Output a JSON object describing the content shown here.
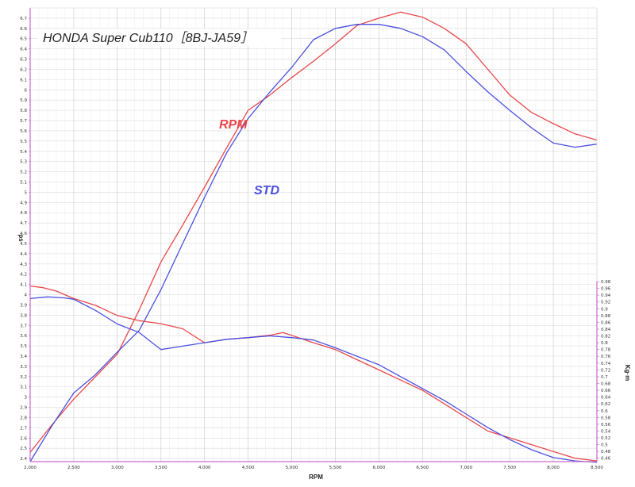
{
  "chart_data": {
    "type": "line",
    "title": "HONDA   Super Cub110［8BJ-JA59］",
    "xlabel": "RPM",
    "ylabel_left": "ps",
    "ylabel_right": "Kg·m",
    "xlim": [
      2000,
      8500
    ],
    "ylim_left": [
      2.37,
      6.8
    ],
    "ylim_right": [
      0.45,
      0.98
    ],
    "x_ticks": [
      2000,
      2500,
      3000,
      3500,
      4000,
      4500,
      5000,
      5500,
      6000,
      6500,
      7000,
      7500,
      8000,
      8500
    ],
    "x_tick_labels": [
      "2,000",
      "2,500",
      "3,000",
      "3,500",
      "4,000",
      "4,500",
      "5,000",
      "5,500",
      "6,000",
      "6,500",
      "7,000",
      "7,500",
      "8,000",
      "8,500"
    ],
    "y_left_ticks": [
      "2.4",
      "2.5",
      "2.6",
      "2.7",
      "2.8",
      "2.9",
      "3",
      "3.1",
      "3.2",
      "3.3",
      "3.4",
      "3.5",
      "3.6",
      "3.7",
      "3.8",
      "3.9",
      "4",
      "4.1",
      "4.2",
      "4.3",
      "4.4",
      "4.5",
      "4.6",
      "4.7",
      "4.8",
      "4.9",
      "5",
      "5.1",
      "5.2",
      "5.3",
      "5.4",
      "5.5",
      "5.6",
      "5.7",
      "5.8",
      "5.9",
      "6",
      "6.1",
      "6.2",
      "6.3",
      "6.4",
      "6.5",
      "6.6",
      "6.7"
    ],
    "y_right_ticks": [
      "0.46",
      "0.48",
      "0.5",
      "0.52",
      "0.54",
      "0.56",
      "0.58",
      "0.6",
      "0.62",
      "0.64",
      "0.66",
      "0.68",
      "0.7",
      "0.72",
      "0.74",
      "0.76",
      "0.78",
      "0.8",
      "0.82",
      "0.84",
      "0.86",
      "0.88",
      "0.9",
      "0.92",
      "0.94",
      "0.96",
      "0.98"
    ],
    "series": [
      {
        "name": "RPM",
        "metric": "power",
        "axis": "left",
        "color": "#e8474a",
        "x": [
          2000,
          2250,
          2500,
          2750,
          3000,
          3250,
          3500,
          3750,
          4000,
          4250,
          4500,
          4750,
          5000,
          5250,
          5500,
          5750,
          6000,
          6250,
          6500,
          6750,
          7000,
          7250,
          7500,
          7750,
          8000,
          8250,
          8500
        ],
        "values": [
          2.46,
          2.73,
          2.98,
          3.2,
          3.42,
          3.85,
          4.32,
          4.68,
          5.05,
          5.43,
          5.8,
          5.95,
          6.12,
          6.28,
          6.45,
          6.63,
          6.7,
          6.76,
          6.71,
          6.6,
          6.45,
          6.2,
          5.95,
          5.78,
          5.67,
          5.57,
          5.51
        ]
      },
      {
        "name": "STD",
        "metric": "power",
        "axis": "left",
        "color": "#4a4fe0",
        "x": [
          2000,
          2250,
          2500,
          2750,
          3000,
          3250,
          3500,
          3750,
          4000,
          4250,
          4500,
          4750,
          5000,
          5250,
          5500,
          5750,
          6000,
          6250,
          6500,
          6750,
          7000,
          7250,
          7500,
          7750,
          8000,
          8250,
          8500
        ],
        "values": [
          2.37,
          2.72,
          3.04,
          3.22,
          3.44,
          3.65,
          4.05,
          4.5,
          4.95,
          5.38,
          5.72,
          5.98,
          6.22,
          6.49,
          6.6,
          6.64,
          6.64,
          6.6,
          6.52,
          6.39,
          6.18,
          5.98,
          5.8,
          5.63,
          5.48,
          5.44,
          5.47
        ]
      },
      {
        "name": "RPM",
        "metric": "torque",
        "axis": "right",
        "color": "#e8474a",
        "x": [
          2000,
          2150,
          2300,
          2500,
          2750,
          3000,
          3250,
          3500,
          3750,
          4000,
          4250,
          4500,
          4750,
          4900,
          5250,
          5500,
          5750,
          6000,
          6250,
          6500,
          6750,
          7000,
          7250,
          7500,
          7750,
          8000,
          8250,
          8500
        ],
        "values": [
          0.967,
          0.962,
          0.952,
          0.93,
          0.91,
          0.88,
          0.865,
          0.856,
          0.841,
          0.8,
          0.81,
          0.815,
          0.822,
          0.83,
          0.8,
          0.78,
          0.75,
          0.72,
          0.69,
          0.66,
          0.62,
          0.58,
          0.54,
          0.52,
          0.5,
          0.48,
          0.46,
          0.452
        ]
      },
      {
        "name": "STD",
        "metric": "torque",
        "axis": "right",
        "color": "#4a4fe0",
        "x": [
          2000,
          2200,
          2400,
          2500,
          2750,
          3000,
          3250,
          3500,
          3750,
          4000,
          4250,
          4500,
          4750,
          5000,
          5250,
          5500,
          5750,
          6000,
          6250,
          6500,
          6750,
          7000,
          7250,
          7500,
          7750,
          8000,
          8250,
          8500
        ],
        "values": [
          0.93,
          0.935,
          0.932,
          0.928,
          0.895,
          0.855,
          0.83,
          0.78,
          0.79,
          0.8,
          0.81,
          0.815,
          0.82,
          0.815,
          0.808,
          0.785,
          0.76,
          0.735,
          0.7,
          0.665,
          0.63,
          0.59,
          0.55,
          0.515,
          0.485,
          0.462,
          0.452,
          0.448
        ]
      }
    ],
    "annotations": [
      {
        "text": "RPM",
        "color": "#e8474a"
      },
      {
        "text": "STD",
        "color": "#4a4fe0"
      }
    ],
    "grid": true
  }
}
